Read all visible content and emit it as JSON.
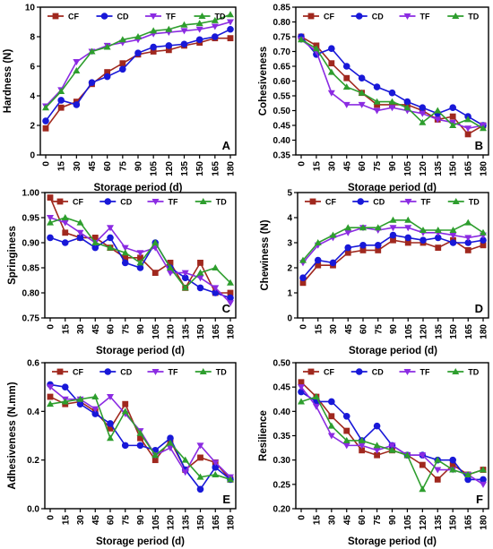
{
  "figure": {
    "colors": {
      "CF": "#a0281e",
      "CD": "#1818d8",
      "TF": "#8b2be2",
      "TD": "#2e9e2e"
    }
  },
  "chart_data": [
    {
      "type": "line",
      "panel": "A",
      "xlabel": "Storage period (d)",
      "ylabel": "Hardness (N)",
      "x": [
        0,
        15,
        30,
        45,
        60,
        75,
        90,
        105,
        120,
        135,
        150,
        165,
        180
      ],
      "ylim": [
        0,
        10
      ],
      "yticks": [
        0,
        2,
        4,
        6,
        8,
        10
      ],
      "legend_position": "top",
      "series": [
        {
          "name": "CF",
          "marker": "square",
          "values": [
            1.8,
            3.2,
            3.6,
            4.8,
            5.6,
            6.2,
            6.8,
            7.0,
            7.1,
            7.4,
            7.6,
            7.9,
            7.9
          ]
        },
        {
          "name": "CD",
          "marker": "circle",
          "values": [
            2.3,
            3.7,
            3.4,
            4.9,
            5.3,
            5.8,
            6.9,
            7.3,
            7.4,
            7.5,
            7.8,
            8.0,
            8.5
          ]
        },
        {
          "name": "TF",
          "marker": "triangle-down",
          "values": [
            3.3,
            4.4,
            6.3,
            7.0,
            7.4,
            7.6,
            7.8,
            8.2,
            8.3,
            8.4,
            8.5,
            8.7,
            9.0
          ]
        },
        {
          "name": "TD",
          "marker": "triangle-up",
          "values": [
            3.2,
            4.3,
            5.7,
            7.0,
            7.3,
            7.8,
            8.0,
            8.4,
            8.5,
            8.8,
            8.9,
            9.1,
            9.5
          ]
        }
      ]
    },
    {
      "type": "line",
      "panel": "B",
      "xlabel": "Storage period (d)",
      "ylabel": "Cohesiveness",
      "x": [
        0,
        15,
        30,
        45,
        60,
        75,
        90,
        105,
        120,
        135,
        150,
        165,
        180
      ],
      "ylim": [
        0.35,
        0.85
      ],
      "yticks": [
        0.35,
        0.4,
        0.45,
        0.5,
        0.55,
        0.6,
        0.65,
        0.7,
        0.75,
        0.8,
        0.85
      ],
      "legend_position": "top",
      "series": [
        {
          "name": "CF",
          "marker": "square",
          "values": [
            0.75,
            0.72,
            0.66,
            0.61,
            0.56,
            0.52,
            0.52,
            0.52,
            0.5,
            0.47,
            0.48,
            0.42,
            0.45
          ]
        },
        {
          "name": "CD",
          "marker": "circle",
          "values": [
            0.75,
            0.69,
            0.71,
            0.65,
            0.61,
            0.58,
            0.56,
            0.53,
            0.51,
            0.49,
            0.51,
            0.48,
            0.45
          ]
        },
        {
          "name": "TF",
          "marker": "triangle-down",
          "values": [
            0.74,
            0.7,
            0.56,
            0.52,
            0.52,
            0.5,
            0.51,
            0.5,
            0.49,
            0.47,
            0.46,
            0.44,
            0.45
          ]
        },
        {
          "name": "TD",
          "marker": "triangle-up",
          "values": [
            0.74,
            0.71,
            0.63,
            0.58,
            0.56,
            0.53,
            0.53,
            0.51,
            0.46,
            0.5,
            0.45,
            0.47,
            0.44
          ]
        }
      ]
    },
    {
      "type": "line",
      "panel": "C",
      "xlabel": "Storage period (d)",
      "ylabel": "Springiness",
      "x": [
        0,
        15,
        30,
        45,
        60,
        75,
        90,
        105,
        120,
        135,
        150,
        165,
        180
      ],
      "ylim": [
        0.75,
        1.0
      ],
      "yticks": [
        0.75,
        0.8,
        0.85,
        0.9,
        0.95,
        1.0
      ],
      "legend_position": "top",
      "series": [
        {
          "name": "CF",
          "marker": "square",
          "values": [
            0.99,
            0.92,
            0.91,
            0.91,
            0.89,
            0.87,
            0.87,
            0.84,
            0.86,
            0.81,
            0.86,
            0.8,
            0.8
          ]
        },
        {
          "name": "CD",
          "marker": "circle",
          "values": [
            0.91,
            0.9,
            0.91,
            0.89,
            0.91,
            0.86,
            0.85,
            0.9,
            0.85,
            0.83,
            0.81,
            0.8,
            0.79
          ]
        },
        {
          "name": "TF",
          "marker": "triangle-down",
          "values": [
            0.95,
            0.94,
            0.92,
            0.9,
            0.93,
            0.89,
            0.88,
            0.89,
            0.84,
            0.84,
            0.83,
            0.81,
            0.78
          ]
        },
        {
          "name": "TD",
          "marker": "triangle-up",
          "values": [
            0.94,
            0.95,
            0.94,
            0.9,
            0.89,
            0.88,
            0.86,
            0.9,
            0.85,
            0.81,
            0.84,
            0.85,
            0.82
          ]
        }
      ]
    },
    {
      "type": "line",
      "panel": "D",
      "xlabel": "Storage period (d)",
      "ylabel": "Chewiness (N)",
      "x": [
        0,
        15,
        30,
        45,
        60,
        75,
        90,
        105,
        120,
        135,
        150,
        165,
        180
      ],
      "ylim": [
        0,
        5
      ],
      "yticks": [
        0,
        1,
        2,
        3,
        4,
        5
      ],
      "legend_position": "top",
      "series": [
        {
          "name": "CF",
          "marker": "square",
          "values": [
            1.4,
            2.1,
            2.1,
            2.6,
            2.7,
            2.7,
            3.1,
            3.0,
            3.0,
            2.8,
            3.1,
            2.7,
            2.9
          ]
        },
        {
          "name": "CD",
          "marker": "circle",
          "values": [
            1.6,
            2.3,
            2.2,
            2.8,
            2.9,
            2.9,
            3.3,
            3.2,
            3.1,
            3.2,
            3.0,
            3.0,
            3.1
          ]
        },
        {
          "name": "TF",
          "marker": "triangle-down",
          "values": [
            2.2,
            2.9,
            3.2,
            3.4,
            3.6,
            3.5,
            3.6,
            3.6,
            3.4,
            3.4,
            3.3,
            3.2,
            3.3
          ]
        },
        {
          "name": "TD",
          "marker": "triangle-up",
          "values": [
            2.3,
            3.0,
            3.3,
            3.6,
            3.6,
            3.6,
            3.9,
            3.9,
            3.5,
            3.5,
            3.5,
            3.8,
            3.4
          ]
        }
      ]
    },
    {
      "type": "line",
      "panel": "E",
      "xlabel": "Storage period (d)",
      "ylabel": "Adhesiveness (N.mm)",
      "x": [
        0,
        15,
        30,
        45,
        60,
        75,
        90,
        105,
        120,
        135,
        150,
        165,
        180
      ],
      "ylim": [
        0.0,
        0.6
      ],
      "yticks": [
        0.0,
        0.2,
        0.4,
        0.6
      ],
      "legend_position": "top",
      "series": [
        {
          "name": "CF",
          "marker": "square",
          "values": [
            0.46,
            0.43,
            0.44,
            0.4,
            0.33,
            0.43,
            0.29,
            0.2,
            0.28,
            0.16,
            0.21,
            0.19,
            0.12
          ]
        },
        {
          "name": "CD",
          "marker": "circle",
          "values": [
            0.51,
            0.5,
            0.43,
            0.39,
            0.35,
            0.26,
            0.26,
            0.24,
            0.29,
            0.16,
            0.08,
            0.17,
            0.12
          ]
        },
        {
          "name": "TF",
          "marker": "triangle-down",
          "values": [
            0.5,
            0.45,
            0.45,
            0.41,
            0.46,
            0.39,
            0.32,
            0.22,
            0.25,
            0.15,
            0.26,
            0.19,
            0.13
          ]
        },
        {
          "name": "TD",
          "marker": "triangle-up",
          "values": [
            0.43,
            0.44,
            0.45,
            0.46,
            0.29,
            0.4,
            0.31,
            0.22,
            0.27,
            0.2,
            0.13,
            0.14,
            0.12
          ]
        }
      ]
    },
    {
      "type": "line",
      "panel": "F",
      "xlabel": "Storage period (d)",
      "ylabel": "Resilience",
      "x": [
        0,
        15,
        30,
        45,
        60,
        75,
        90,
        105,
        120,
        135,
        150,
        165,
        180
      ],
      "ylim": [
        0.2,
        0.5
      ],
      "yticks": [
        0.2,
        0.25,
        0.3,
        0.35,
        0.4,
        0.45,
        0.5
      ],
      "legend_position": "top",
      "series": [
        {
          "name": "CF",
          "marker": "square",
          "values": [
            0.46,
            0.43,
            0.39,
            0.36,
            0.32,
            0.31,
            0.32,
            0.31,
            0.29,
            0.26,
            0.29,
            0.27,
            0.28
          ]
        },
        {
          "name": "CD",
          "marker": "circle",
          "values": [
            0.44,
            0.42,
            0.42,
            0.39,
            0.34,
            0.37,
            0.33,
            0.31,
            0.31,
            0.3,
            0.3,
            0.26,
            0.26
          ]
        },
        {
          "name": "TF",
          "marker": "triangle-down",
          "values": [
            0.45,
            0.41,
            0.35,
            0.33,
            0.33,
            0.32,
            0.33,
            0.31,
            0.31,
            0.28,
            0.28,
            0.27,
            0.25
          ]
        },
        {
          "name": "TD",
          "marker": "triangle-up",
          "values": [
            0.42,
            0.43,
            0.37,
            0.34,
            0.34,
            0.33,
            0.32,
            0.31,
            0.24,
            0.3,
            0.28,
            0.27,
            0.28
          ]
        }
      ]
    }
  ]
}
